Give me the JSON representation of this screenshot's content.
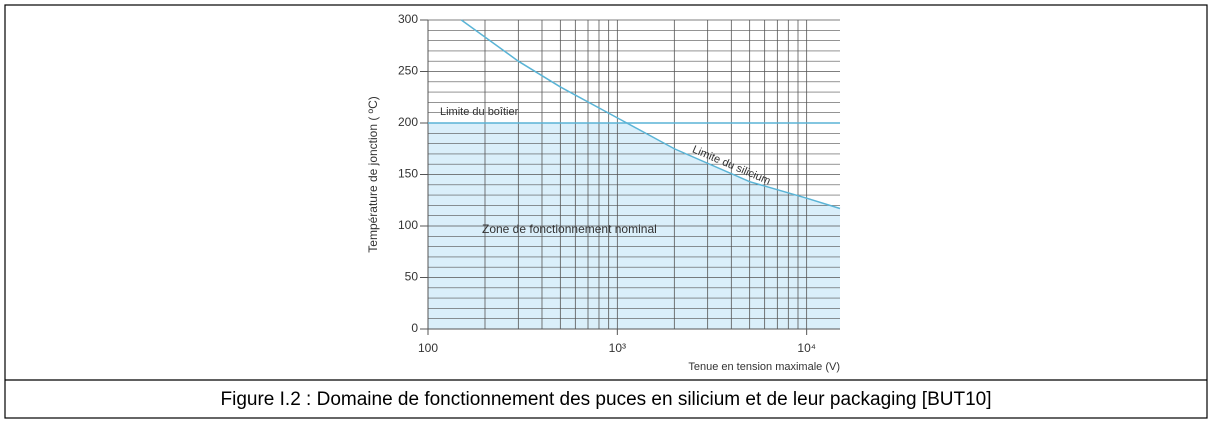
{
  "chart_data": {
    "type": "line",
    "ylabel": "Température de jonction ( ºC)",
    "xlabel": "Tenue en tension maximale (V)",
    "xscale": "log",
    "xlim": [
      100,
      15000
    ],
    "ylim": [
      0,
      300
    ],
    "xticks": [
      100,
      {
        "value": 1000,
        "label": "10³"
      },
      {
        "value": 10000,
        "label": "10⁴"
      }
    ],
    "yticks": [
      0,
      50,
      100,
      150,
      200,
      250,
      300
    ],
    "grid": true,
    "series": [
      {
        "name": "Limite du boîtier",
        "color": "#5ab4d6",
        "x": [
          100,
          15000
        ],
        "values": [
          200,
          200
        ]
      },
      {
        "name": "Limite du silicium",
        "color": "#5ab4d6",
        "x": [
          150,
          300,
          500,
          1000,
          2000,
          5000,
          10000,
          15000
        ],
        "values": [
          300,
          260,
          235,
          205,
          175,
          143,
          127,
          117
        ]
      }
    ],
    "annotations": [
      "Zone de fonctionnement nominal"
    ],
    "fill_color": "#daeffa"
  },
  "caption": "Figure I.2 : Domaine de fonctionnement des puces en silicium et de leur packaging [BUT10]"
}
